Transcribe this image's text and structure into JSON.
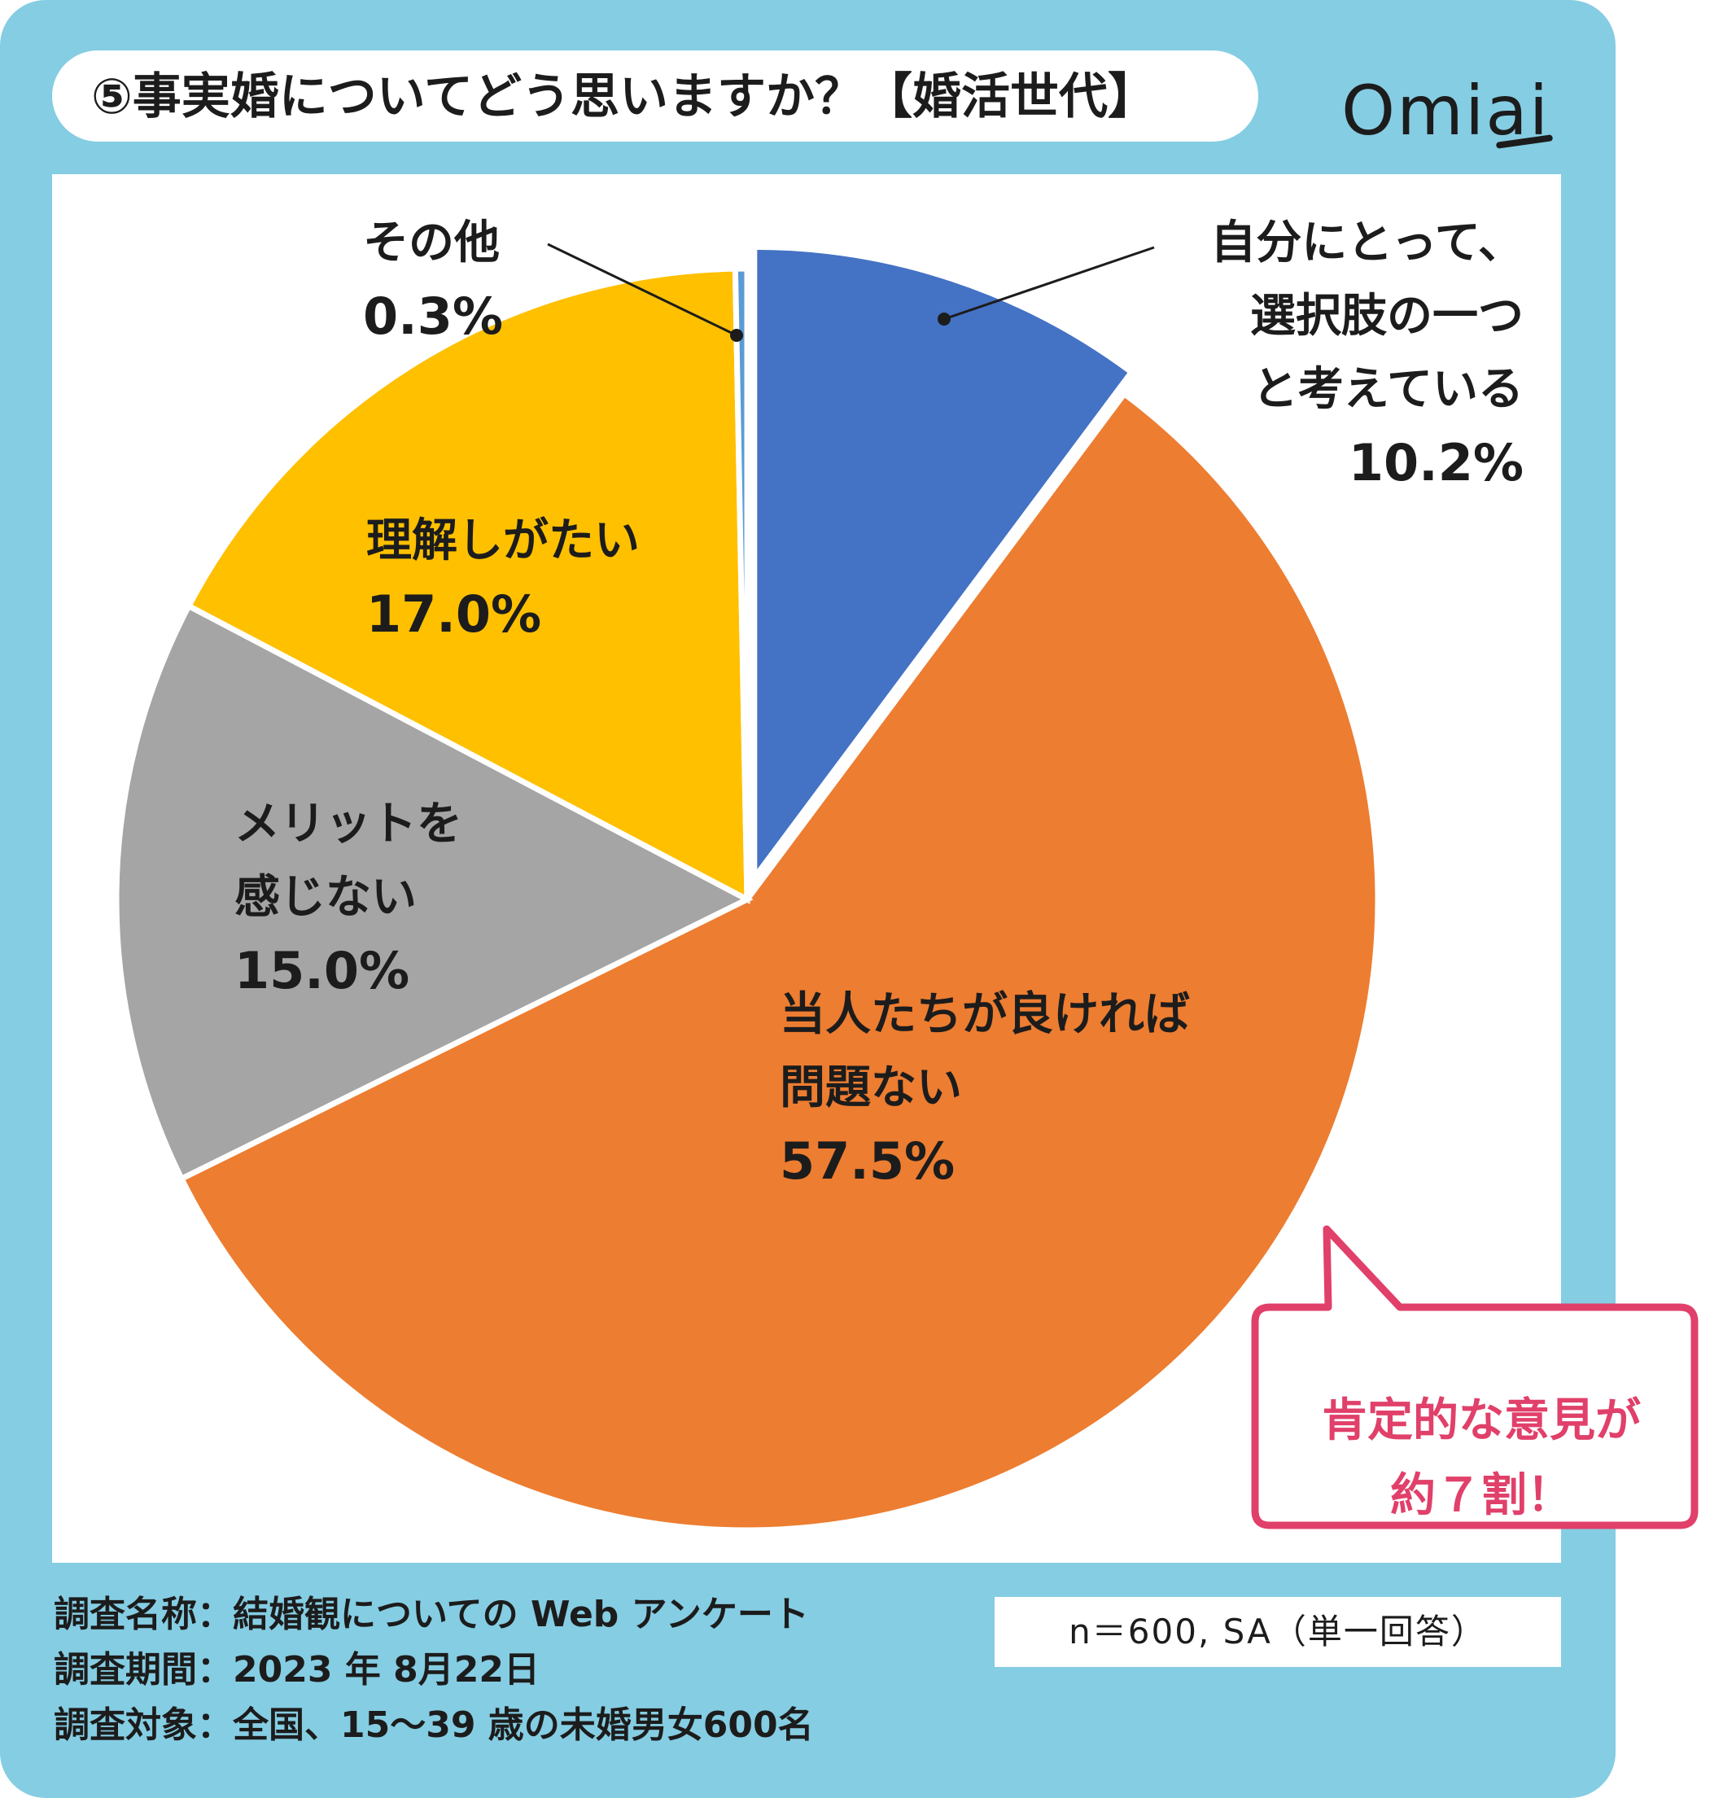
{
  "title": "⑤事実婚についてどう思いますか？【婚活世代】",
  "logo": "Omiai",
  "colors": {
    "frame": "#85cde3",
    "panel": "#ffffff",
    "callout": "#e0406a",
    "text": "#1c1c1c"
  },
  "chart_data": {
    "type": "pie",
    "start": "12 o'clock, clockwise",
    "slices": [
      {
        "label": "自分にとって、選択肢の一つと考えている",
        "label_lines": [
          "自分にとって、",
          "選択肢の一つ",
          "と考えている"
        ],
        "value": 10.2,
        "value_label": "10.2%",
        "color": "#4472c4"
      },
      {
        "label": "当人たちが良ければ問題ない",
        "label_lines": [
          "当人たちが良ければ",
          "問題ない"
        ],
        "value": 57.5,
        "value_label": "57.5%",
        "color": "#ed7d31"
      },
      {
        "label": "メリットを感じない",
        "label_lines": [
          "メリットを",
          "感じない"
        ],
        "value": 15.0,
        "value_label": "15.0%",
        "color": "#a5a5a5"
      },
      {
        "label": "理解しがたい",
        "label_lines": [
          "理解しがたい"
        ],
        "value": 17.0,
        "value_label": "17.0%",
        "color": "#ffc000"
      },
      {
        "label": "その他",
        "label_lines": [
          "その他"
        ],
        "value": 0.3,
        "value_label": "0.3%",
        "color": "#5b9bd5"
      }
    ],
    "exploded": "自分にとって、選択肢の一つと考えている"
  },
  "callout": {
    "line1": "肯定的な意見が",
    "line2": "約７割！"
  },
  "footer": {
    "line1": "調査名称：結婚観についての Web アンケート",
    "line2": "調査期間：2023 年 8月22日",
    "line3": "調査対象：全国、15～39 歳の未婚男女600名",
    "sample": "n＝600, SA（単一回答）"
  }
}
